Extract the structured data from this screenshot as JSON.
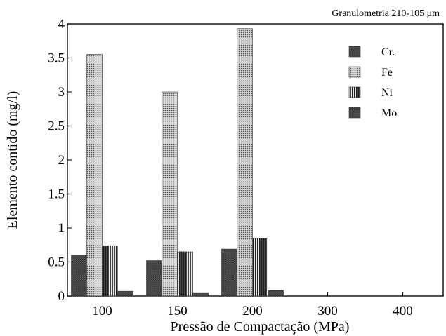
{
  "chart_data": {
    "type": "bar",
    "subtitle": "Granulometria 210-105 μm",
    "xlabel": "Pressão de Compactação (MPa)",
    "ylabel": "Elemento contido (mg/l)",
    "categories": [
      "100",
      "150",
      "200",
      "300",
      "400"
    ],
    "yticks": [
      "0",
      "0.5",
      "1",
      "1.5",
      "2",
      "2.5",
      "3",
      "3.5",
      "4"
    ],
    "ylim": [
      0,
      4
    ],
    "grid": false,
    "legend_position": "top-right",
    "series": [
      {
        "name": "Cr.",
        "values": [
          0.6,
          0.52,
          0.69,
          0,
          0
        ],
        "pattern": "dark",
        "color": "#4a4a4a"
      },
      {
        "name": "Fe",
        "values": [
          3.55,
          3.0,
          3.93,
          0,
          0
        ],
        "pattern": "dots",
        "color": "#9a9a9a"
      },
      {
        "name": "Ni",
        "values": [
          0.74,
          0.65,
          0.85,
          0,
          0
        ],
        "pattern": "vlines",
        "color": "#2a2a2a"
      },
      {
        "name": "Mo",
        "values": [
          0.07,
          0.05,
          0.08,
          0,
          0
        ],
        "pattern": "dark",
        "color": "#555555"
      }
    ]
  }
}
